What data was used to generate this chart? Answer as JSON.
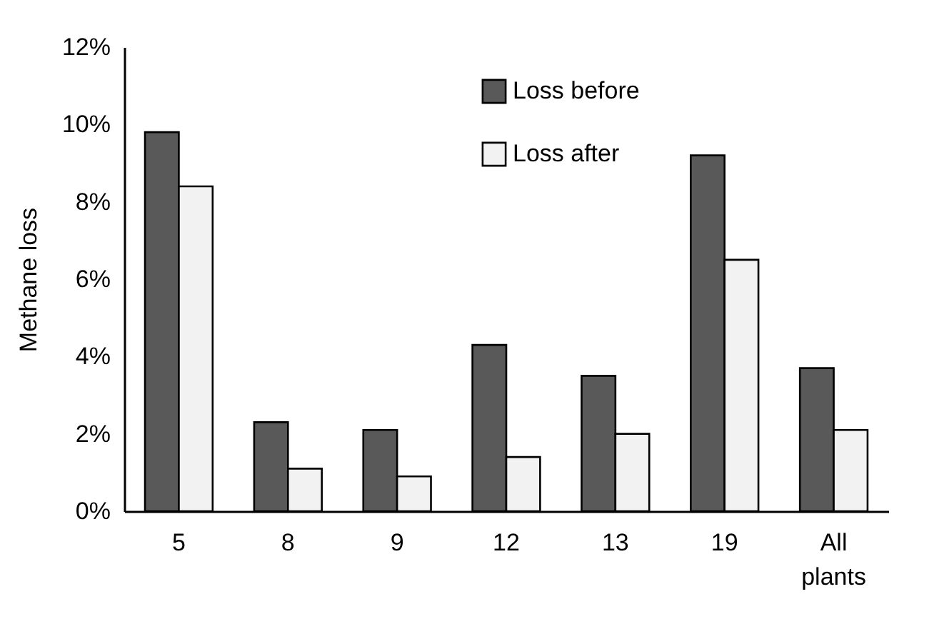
{
  "chart_data": {
    "type": "bar",
    "ylabel": "Methane loss",
    "categories": [
      "5",
      "8",
      "9",
      "12",
      "13",
      "19",
      "All plants"
    ],
    "series": [
      {
        "name": "Loss before",
        "color": "#595959",
        "values": [
          9.8,
          2.3,
          2.1,
          4.3,
          3.5,
          9.2,
          3.7
        ]
      },
      {
        "name": "Loss after",
        "color": "#f2f2f2",
        "values": [
          8.4,
          1.1,
          0.9,
          1.4,
          2.0,
          6.5,
          2.1
        ]
      }
    ],
    "ylim": [
      0,
      12
    ],
    "yticks": [
      {
        "value": 0,
        "label": "0%"
      },
      {
        "value": 2,
        "label": "2%"
      },
      {
        "value": 4,
        "label": "4%"
      },
      {
        "value": 6,
        "label": "6%"
      },
      {
        "value": 8,
        "label": "8%"
      },
      {
        "value": 10,
        "label": "10%"
      },
      {
        "value": 12,
        "label": "12%"
      }
    ],
    "grid": false,
    "legend": "top right"
  }
}
